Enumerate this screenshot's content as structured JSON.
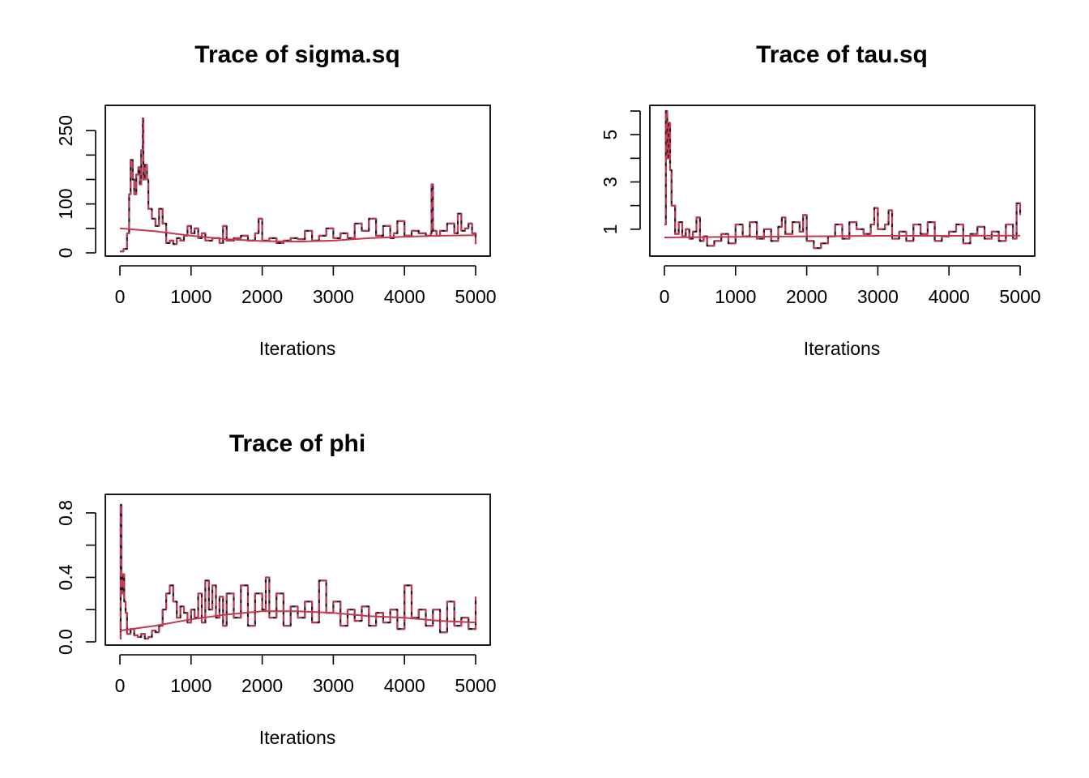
{
  "colors": {
    "chain": "#1a1a1a",
    "chain_overlay": "#d03a5c",
    "smooth": "#c8354f",
    "frame": "#000000",
    "background": "#ffffff"
  },
  "chart_data": [
    {
      "type": "line",
      "title": "Trace of sigma.sq",
      "xlabel": "Iterations",
      "ylabel": "",
      "xlim": [
        0,
        5000
      ],
      "ylim": [
        0,
        290
      ],
      "xticks": [
        0,
        1000,
        2000,
        3000,
        4000,
        5000
      ],
      "yticks": [
        0,
        50,
        100,
        150,
        200,
        250
      ],
      "ytick_labels": [
        "0",
        "",
        "100",
        "",
        "",
        "250"
      ],
      "grid": false,
      "series": [
        {
          "x": [
            0,
            50,
            100,
            130,
            150,
            180,
            200,
            230,
            260,
            280,
            300,
            320,
            330,
            350,
            380,
            400,
            450,
            500,
            550,
            600,
            650,
            700,
            750,
            800,
            850,
            900,
            950,
            1000,
            1050,
            1100,
            1150,
            1200,
            1300,
            1400,
            1450,
            1500,
            1600,
            1700,
            1800,
            1900,
            1950,
            2000,
            2100,
            2200,
            2300,
            2400,
            2500,
            2600,
            2700,
            2800,
            2900,
            3000,
            3100,
            3200,
            3300,
            3400,
            3500,
            3600,
            3700,
            3800,
            3850,
            3900,
            4000,
            4100,
            4200,
            4300,
            4370,
            4380,
            4400,
            4450,
            4500,
            4600,
            4700,
            4750,
            4800,
            4850,
            4900,
            4950,
            5000
          ],
          "values": [
            3,
            8,
            40,
            120,
            190,
            150,
            120,
            160,
            175,
            140,
            210,
            275,
            150,
            180,
            150,
            90,
            70,
            55,
            90,
            60,
            20,
            25,
            18,
            30,
            25,
            35,
            55,
            40,
            50,
            30,
            40,
            25,
            30,
            20,
            55,
            25,
            30,
            35,
            25,
            40,
            70,
            25,
            30,
            20,
            25,
            30,
            28,
            45,
            25,
            35,
            50,
            30,
            40,
            30,
            60,
            45,
            70,
            35,
            55,
            30,
            40,
            65,
            35,
            45,
            40,
            35,
            40,
            140,
            45,
            35,
            45,
            60,
            40,
            80,
            45,
            50,
            60,
            40,
            18
          ]
        }
      ],
      "smooth": {
        "x": [
          0,
          500,
          1000,
          1500,
          2000,
          2500,
          3000,
          3500,
          4000,
          4500,
          5000
        ],
        "values": [
          50,
          44,
          35,
          28,
          24,
          23,
          25,
          30,
          33,
          35,
          36
        ]
      }
    },
    {
      "type": "line",
      "title": "Trace of tau.sq",
      "xlabel": "Iterations",
      "ylabel": "",
      "xlim": [
        0,
        5000
      ],
      "ylim": [
        0,
        6
      ],
      "xticks": [
        0,
        1000,
        2000,
        3000,
        4000,
        5000
      ],
      "yticks": [
        1,
        2,
        3,
        4,
        5,
        6
      ],
      "ytick_labels": [
        "1",
        "",
        "3",
        "",
        "5",
        ""
      ],
      "grid": false,
      "series": [
        {
          "x": [
            0,
            20,
            40,
            60,
            80,
            100,
            150,
            200,
            250,
            300,
            350,
            400,
            450,
            500,
            550,
            600,
            700,
            800,
            900,
            1000,
            1100,
            1200,
            1300,
            1400,
            1500,
            1600,
            1650,
            1700,
            1800,
            1900,
            1950,
            2000,
            2100,
            2200,
            2300,
            2400,
            2500,
            2600,
            2700,
            2800,
            2900,
            2950,
            3000,
            3100,
            3150,
            3200,
            3300,
            3400,
            3500,
            3600,
            3700,
            3800,
            3900,
            4000,
            4100,
            4200,
            4300,
            4400,
            4500,
            4600,
            4700,
            4800,
            4900,
            4950,
            5000
          ],
          "values": [
            1.2,
            6.0,
            4.0,
            5.5,
            3.5,
            2.0,
            0.8,
            1.3,
            0.7,
            1.0,
            0.6,
            0.9,
            1.5,
            0.5,
            0.7,
            0.3,
            0.5,
            0.8,
            0.4,
            1.2,
            0.7,
            1.3,
            0.6,
            1.0,
            0.5,
            1.1,
            1.5,
            0.8,
            1.3,
            0.9,
            1.6,
            0.5,
            0.2,
            0.4,
            0.7,
            1.2,
            0.6,
            1.3,
            1.0,
            0.8,
            1.2,
            1.9,
            1.0,
            1.2,
            1.8,
            0.6,
            0.9,
            0.5,
            1.2,
            0.8,
            1.3,
            0.5,
            0.7,
            0.9,
            1.2,
            0.4,
            0.8,
            1.1,
            0.6,
            0.9,
            0.5,
            1.2,
            0.6,
            2.1,
            1.6
          ]
        }
      ],
      "smooth": {
        "x": [
          0,
          1000,
          2000,
          3000,
          4000,
          5000
        ],
        "values": [
          0.65,
          0.68,
          0.7,
          0.72,
          0.72,
          0.73
        ]
      }
    },
    {
      "type": "line",
      "title": "Trace of phi",
      "xlabel": "Iterations",
      "ylabel": "",
      "xlim": [
        0,
        5000
      ],
      "ylim": [
        0,
        0.88
      ],
      "xticks": [
        0,
        1000,
        2000,
        3000,
        4000,
        5000
      ],
      "yticks": [
        0,
        0.2,
        0.4,
        0.6,
        0.8
      ],
      "ytick_labels": [
        "0.0",
        "",
        "0.4",
        "",
        "0.8"
      ],
      "grid": false,
      "series": [
        {
          "x": [
            0,
            10,
            20,
            40,
            60,
            80,
            100,
            150,
            200,
            250,
            300,
            350,
            400,
            450,
            500,
            550,
            600,
            650,
            700,
            750,
            800,
            850,
            900,
            950,
            1000,
            1050,
            1100,
            1150,
            1200,
            1250,
            1300,
            1350,
            1400,
            1450,
            1500,
            1600,
            1700,
            1800,
            1900,
            2000,
            2050,
            2100,
            2200,
            2300,
            2400,
            2500,
            2600,
            2700,
            2800,
            2900,
            3000,
            3100,
            3200,
            3300,
            3400,
            3500,
            3600,
            3700,
            3800,
            3900,
            4000,
            4100,
            4200,
            4300,
            4400,
            4500,
            4600,
            4700,
            4800,
            4900,
            5000
          ],
          "values": [
            0.02,
            0.85,
            0.3,
            0.42,
            0.25,
            0.18,
            0.05,
            0.08,
            0.04,
            0.03,
            0.05,
            0.02,
            0.03,
            0.07,
            0.06,
            0.1,
            0.2,
            0.3,
            0.35,
            0.25,
            0.15,
            0.22,
            0.18,
            0.12,
            0.2,
            0.15,
            0.3,
            0.12,
            0.38,
            0.2,
            0.35,
            0.15,
            0.28,
            0.1,
            0.3,
            0.15,
            0.35,
            0.1,
            0.3,
            0.2,
            0.4,
            0.15,
            0.3,
            0.1,
            0.22,
            0.15,
            0.25,
            0.12,
            0.38,
            0.18,
            0.25,
            0.1,
            0.2,
            0.13,
            0.22,
            0.1,
            0.18,
            0.12,
            0.2,
            0.08,
            0.35,
            0.15,
            0.2,
            0.1,
            0.2,
            0.06,
            0.25,
            0.1,
            0.15,
            0.08,
            0.28
          ]
        }
      ],
      "smooth": {
        "x": [
          0,
          500,
          1000,
          1500,
          2000,
          2500,
          3000,
          3500,
          4000,
          4500,
          5000
        ],
        "values": [
          0.07,
          0.1,
          0.14,
          0.17,
          0.19,
          0.19,
          0.18,
          0.16,
          0.15,
          0.13,
          0.12
        ]
      }
    }
  ]
}
